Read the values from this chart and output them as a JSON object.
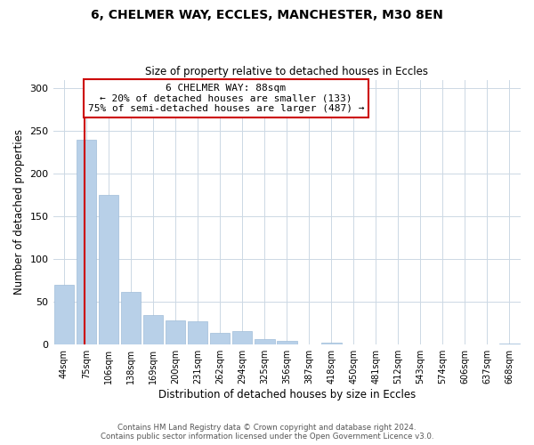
{
  "title": "6, CHELMER WAY, ECCLES, MANCHESTER, M30 8EN",
  "subtitle": "Size of property relative to detached houses in Eccles",
  "xlabel": "Distribution of detached houses by size in Eccles",
  "ylabel": "Number of detached properties",
  "categories": [
    "44sqm",
    "75sqm",
    "106sqm",
    "138sqm",
    "169sqm",
    "200sqm",
    "231sqm",
    "262sqm",
    "294sqm",
    "325sqm",
    "356sqm",
    "387sqm",
    "418sqm",
    "450sqm",
    "481sqm",
    "512sqm",
    "543sqm",
    "574sqm",
    "606sqm",
    "637sqm",
    "668sqm"
  ],
  "values": [
    70,
    240,
    175,
    62,
    35,
    28,
    27,
    14,
    16,
    6,
    4,
    0,
    2,
    0,
    0,
    0,
    0,
    0,
    0,
    0,
    1
  ],
  "bar_color": "#b8d0e8",
  "bar_edge_color": "#a0bcd8",
  "vline_x_index": 1,
  "vline_color": "#cc0000",
  "ylim": [
    0,
    310
  ],
  "yticks": [
    0,
    50,
    100,
    150,
    200,
    250,
    300
  ],
  "annotation_line1": "6 CHELMER WAY: 88sqm",
  "annotation_line2": "← 20% of detached houses are smaller (133)",
  "annotation_line3": "75% of semi-detached houses are larger (487) →",
  "annotation_box_color": "#ffffff",
  "annotation_box_edge": "#cc0000",
  "footer_line1": "Contains HM Land Registry data © Crown copyright and database right 2024.",
  "footer_line2": "Contains public sector information licensed under the Open Government Licence v3.0.",
  "background_color": "#ffffff",
  "grid_color": "#ccd8e4"
}
